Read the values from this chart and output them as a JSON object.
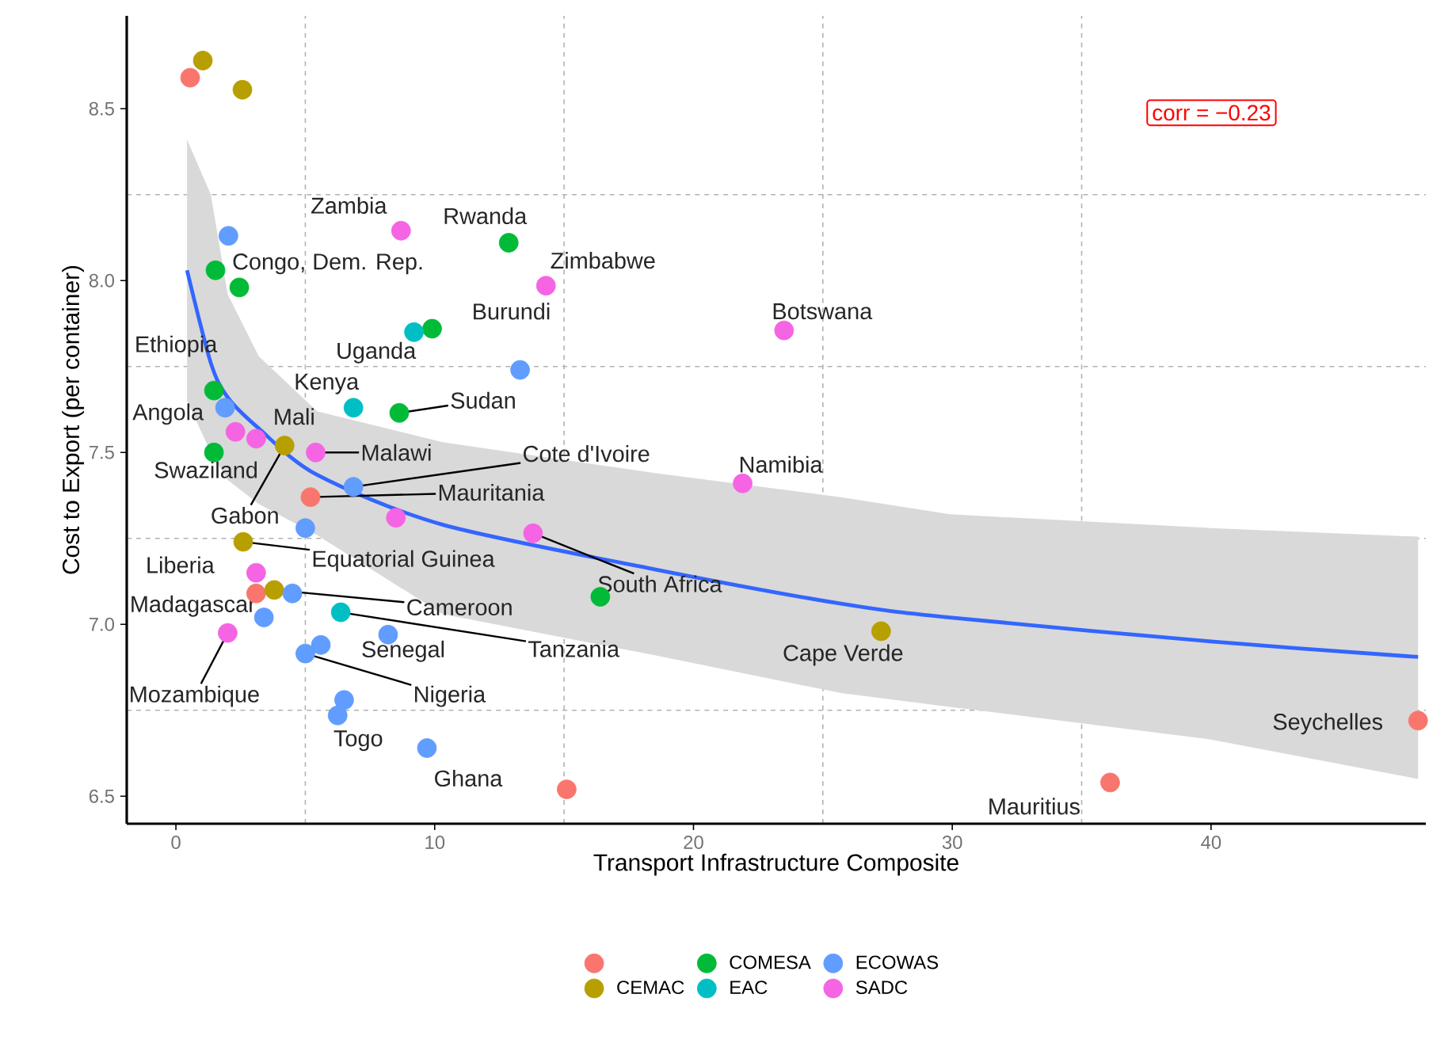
{
  "chart_data": {
    "type": "scatter",
    "xlabel": "Transport Infrastructure Composite",
    "ylabel": "Cost to Export (per container)",
    "xlim": [
      -1.9,
      48.3
    ],
    "ylim": [
      6.42,
      8.77
    ],
    "xticks": [
      0,
      10,
      20,
      30,
      40
    ],
    "yticks": [
      6.5,
      {
        "value": 7,
        "label": "7.0"
      },
      7.5,
      {
        "value": 8,
        "label": "8.0"
      },
      8.5
    ],
    "grid": true,
    "legend": "bottom",
    "series": [
      {
        "marker": "circle",
        "color": "#f8766d",
        "x": [
          0.55,
          5.2,
          3.1,
          15.1,
          36.1,
          48.0
        ],
        "values": [
          8.59,
          7.37,
          7.09,
          6.52,
          6.54,
          6.72
        ]
      },
      {
        "name": "CEMAC",
        "marker": "circle",
        "color": "#b79f00",
        "x": [
          1.04,
          2.57,
          4.2,
          2.6,
          3.8,
          27.25
        ],
        "values": [
          8.64,
          8.555,
          7.52,
          7.24,
          7.1,
          6.98
        ]
      },
      {
        "name": "COMESA",
        "marker": "circle",
        "color": "#00ba38",
        "x": [
          1.53,
          2.45,
          12.86,
          9.9,
          1.47,
          8.63,
          1.47,
          16.4
        ],
        "values": [
          8.03,
          7.98,
          8.11,
          7.86,
          7.68,
          7.615,
          7.5,
          7.08
        ]
      },
      {
        "name": "EAC",
        "marker": "circle",
        "color": "#00bfc4",
        "x": [
          9.2,
          6.86,
          6.37
        ],
        "values": [
          7.85,
          7.63,
          7.035
        ]
      },
      {
        "name": "ECOWAS",
        "marker": "circle",
        "color": "#619cff",
        "x": [
          2.03,
          13.3,
          1.9,
          6.86,
          5.0,
          4.5,
          3.4,
          8.2,
          5.6,
          5.0,
          6.5,
          6.25,
          9.7
        ],
        "values": [
          8.13,
          7.74,
          7.63,
          7.4,
          7.28,
          7.09,
          7.02,
          6.97,
          6.94,
          6.915,
          6.78,
          6.735,
          6.64
        ]
      },
      {
        "name": "SADC",
        "marker": "circle",
        "color": "#f564e3",
        "x": [
          8.7,
          14.3,
          23.5,
          21.9,
          2.3,
          3.1,
          5.4,
          8.5,
          13.8,
          3.1,
          2.0
        ],
        "values": [
          8.145,
          7.985,
          7.855,
          7.41,
          7.56,
          7.54,
          7.5,
          7.31,
          7.265,
          7.15,
          6.975
        ]
      },
      {
        "type": "line",
        "marker": "none",
        "color": "#3366ff",
        "x": [
          0.43,
          1.35,
          2,
          3.2,
          5.45,
          10.3,
          18.5,
          25.7,
          29.9,
          40,
          48
        ],
        "values": [
          8.03,
          7.76,
          7.66,
          7.57,
          7.435,
          7.29,
          7.16,
          7.06,
          7.02,
          6.95,
          6.905
        ],
        "lower": [
          7.65,
          7.5,
          7.42,
          7.35,
          7.26,
          7.03,
          6.91,
          6.8,
          6.76,
          6.665,
          6.55
        ],
        "upper": [
          8.41,
          8.25,
          7.96,
          7.78,
          7.62,
          7.53,
          7.44,
          7.37,
          7.32,
          7.28,
          7.255
        ]
      }
    ],
    "annotations": [
      "corr = −0.23",
      {
        "text": "Zambia",
        "x": 8.7,
        "y": 8.145
      },
      {
        "text": "Rwanda",
        "x": 12.86,
        "y": 8.11
      },
      {
        "text": "Congo, Dem. Rep.",
        "x": 1.53,
        "y": 8.03
      },
      {
        "text": "Zimbabwe",
        "x": 14.3,
        "y": 7.985
      },
      {
        "text": "Burundi",
        "x": 9.9,
        "y": 7.86
      },
      {
        "text": "Botswana",
        "x": 23.5,
        "y": 7.855
      },
      {
        "text": "Ethiopia",
        "x": 1.47,
        "y": 7.68
      },
      {
        "text": "Uganda",
        "x": 9.2,
        "y": 7.85
      },
      {
        "text": "Kenya",
        "x": 6.86,
        "y": 7.63
      },
      {
        "text": "Sudan",
        "x": 8.63,
        "y": 7.615
      },
      {
        "text": "Angola",
        "x": 1.9,
        "y": 7.63
      },
      {
        "text": "Mali",
        "x": 3.1,
        "y": 7.54
      },
      {
        "text": "Swaziland",
        "x": 1.47,
        "y": 7.5
      },
      {
        "text": "Malawi",
        "x": 5.4,
        "y": 7.5
      },
      {
        "text": "Cote d'Ivoire",
        "x": 6.86,
        "y": 7.4
      },
      {
        "text": "Gabon",
        "x": 4.2,
        "y": 7.52
      },
      {
        "text": "Mauritania",
        "x": 5.2,
        "y": 7.37
      },
      {
        "text": "Namibia",
        "x": 21.9,
        "y": 7.41
      },
      {
        "text": "Equatorial Guinea",
        "x": 2.6,
        "y": 7.24
      },
      {
        "text": "South Africa",
        "x": 13.8,
        "y": 7.265
      },
      {
        "text": "Liberia",
        "x": 3.1,
        "y": 7.15
      },
      {
        "text": "Madagascar",
        "x": 3.1,
        "y": 7.09
      },
      {
        "text": "Cameroon",
        "x": 3.8,
        "y": 7.1
      },
      {
        "text": "Cape Verde",
        "x": 27.25,
        "y": 6.98
      },
      {
        "text": "Tanzania",
        "x": 6.37,
        "y": 7.035
      },
      {
        "text": "Senegal",
        "x": 5.6,
        "y": 6.94
      },
      {
        "text": "Mozambique",
        "x": 2.0,
        "y": 6.975
      },
      {
        "text": "Nigeria",
        "x": 5.0,
        "y": 6.915
      },
      {
        "text": "Togo",
        "x": 6.25,
        "y": 6.735
      },
      {
        "text": "Ghana",
        "x": 9.7,
        "y": 6.64
      },
      {
        "text": "Mauritius",
        "x": 36.1,
        "y": 6.54
      },
      {
        "text": "Seychelles",
        "x": 48.0,
        "y": 6.72
      }
    ]
  }
}
